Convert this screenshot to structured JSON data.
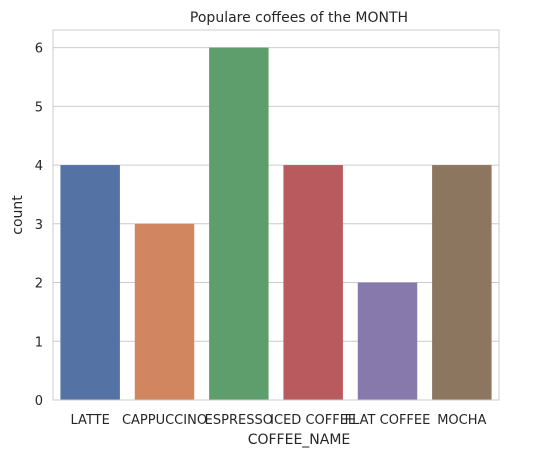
{
  "chart_data": {
    "type": "bar",
    "title": "Populare coffees of the MONTH",
    "xlabel": "COFFEE_NAME",
    "ylabel": "count",
    "categories": [
      "LATTE",
      "CAPPUCCINO",
      "ESPRESSO",
      "ICED COFFEE",
      "FLAT COFFEE",
      "MOCHA"
    ],
    "values": [
      4,
      3,
      6,
      4,
      2,
      4
    ],
    "colors": [
      "#5572a4",
      "#d1865f",
      "#5e9e6d",
      "#b95a5f",
      "#8879ad",
      "#8d7660"
    ],
    "ylim": [
      0,
      6.3
    ],
    "yticks": [
      0,
      1,
      2,
      3,
      4,
      5,
      6
    ],
    "grid": "horizontal",
    "background": "#ffffff",
    "grid_color": "#cccccc"
  }
}
